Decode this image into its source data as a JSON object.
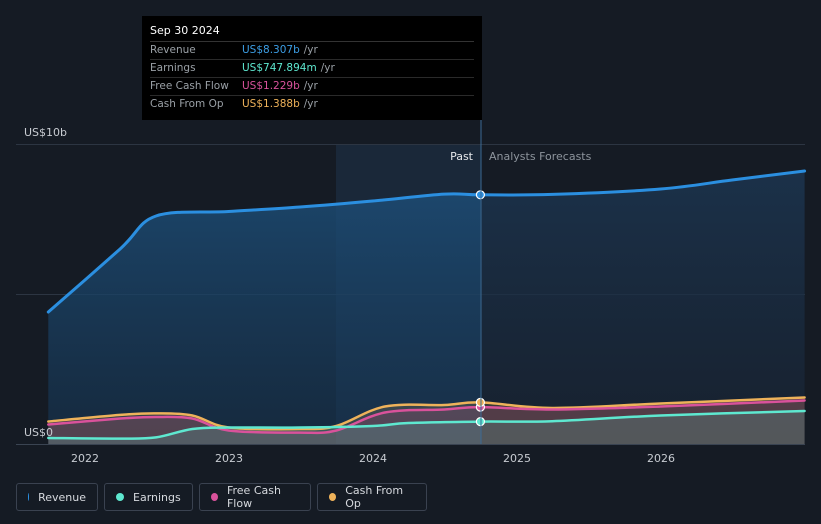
{
  "tooltip": {
    "date": "Sep 30 2024",
    "rows": [
      {
        "label": "Revenue",
        "value": "US$8.307b",
        "unit": "/yr",
        "color": "#3c9ee5"
      },
      {
        "label": "Earnings",
        "value": "US$747.894m",
        "unit": "/yr",
        "color": "#5ee8d0"
      },
      {
        "label": "Free Cash Flow",
        "value": "US$1.229b",
        "unit": "/yr",
        "color": "#d9529b"
      },
      {
        "label": "Cash From Op",
        "value": "US$1.388b",
        "unit": "/yr",
        "color": "#eeb25a"
      }
    ]
  },
  "labels": {
    "past": "Past",
    "forecast": "Analysts Forecasts"
  },
  "legend": [
    {
      "label": "Revenue",
      "color": "#2b8fe0"
    },
    {
      "label": "Earnings",
      "color": "#5ee8d0"
    },
    {
      "label": "Free Cash Flow",
      "color": "#d9529b"
    },
    {
      "label": "Cash From Op",
      "color": "#eeb25a"
    }
  ],
  "chart_data": {
    "type": "area",
    "ylim": [
      0,
      10
    ],
    "y_tick_labels": [
      {
        "value": 10,
        "label": "US$10b"
      },
      {
        "value": 0,
        "label": "US$0"
      }
    ],
    "x_tick_labels": [
      "2022",
      "2023",
      "2024",
      "2025",
      "2026"
    ],
    "highlight_date": "Sep 30 2024",
    "grid": true,
    "legend_position": "bottom-left",
    "series": [
      {
        "name": "Revenue",
        "color": "#2b8fe0",
        "points": [
          [
            "2021-09-30",
            4.4
          ],
          [
            "2022-03-31",
            6.5
          ],
          [
            "2022-06-30",
            7.6
          ],
          [
            "2022-12-31",
            7.75
          ],
          [
            "2023-06-30",
            7.9
          ],
          [
            "2023-12-31",
            8.1
          ],
          [
            "2024-06-30",
            8.33
          ],
          [
            "2024-09-30",
            8.307
          ],
          [
            "2025-03-31",
            8.32
          ],
          [
            "2025-12-31",
            8.5
          ],
          [
            "2026-06-30",
            8.8
          ],
          [
            "2026-12-31",
            9.1
          ]
        ]
      },
      {
        "name": "Earnings",
        "color": "#5ee8d0",
        "points": [
          [
            "2021-09-30",
            0.2
          ],
          [
            "2022-03-31",
            0.18
          ],
          [
            "2022-06-30",
            0.22
          ],
          [
            "2022-09-30",
            0.5
          ],
          [
            "2022-12-31",
            0.55
          ],
          [
            "2023-06-30",
            0.55
          ],
          [
            "2023-12-31",
            0.6
          ],
          [
            "2024-03-31",
            0.7
          ],
          [
            "2024-09-30",
            0.748
          ],
          [
            "2025-03-31",
            0.76
          ],
          [
            "2025-12-31",
            0.95
          ],
          [
            "2026-12-31",
            1.1
          ]
        ]
      },
      {
        "name": "Free Cash Flow",
        "color": "#d9529b",
        "points": [
          [
            "2021-09-30",
            0.65
          ],
          [
            "2022-03-31",
            0.85
          ],
          [
            "2022-06-30",
            0.9
          ],
          [
            "2022-09-30",
            0.85
          ],
          [
            "2022-12-31",
            0.45
          ],
          [
            "2023-06-30",
            0.38
          ],
          [
            "2023-09-30",
            0.45
          ],
          [
            "2024-01-31",
            1.05
          ],
          [
            "2024-06-30",
            1.15
          ],
          [
            "2024-09-30",
            1.229
          ],
          [
            "2025-03-31",
            1.15
          ],
          [
            "2025-12-31",
            1.25
          ],
          [
            "2026-12-31",
            1.45
          ]
        ]
      },
      {
        "name": "Cash From Op",
        "color": "#eeb25a",
        "points": [
          [
            "2021-09-30",
            0.75
          ],
          [
            "2022-03-31",
            0.97
          ],
          [
            "2022-06-30",
            1.02
          ],
          [
            "2022-09-30",
            0.95
          ],
          [
            "2022-12-31",
            0.55
          ],
          [
            "2023-06-30",
            0.5
          ],
          [
            "2023-09-30",
            0.6
          ],
          [
            "2024-01-31",
            1.25
          ],
          [
            "2024-06-30",
            1.3
          ],
          [
            "2024-09-30",
            1.388
          ],
          [
            "2025-03-31",
            1.2
          ],
          [
            "2025-12-31",
            1.35
          ],
          [
            "2026-12-31",
            1.55
          ]
        ]
      }
    ]
  }
}
